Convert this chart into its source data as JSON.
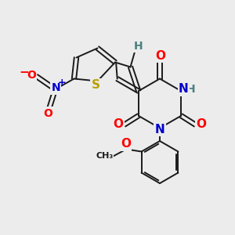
{
  "bg_color": "#ececec",
  "bond_color": "#1a1a1a",
  "bond_width": 1.4,
  "fig_size": [
    3.0,
    3.0
  ],
  "dpi": 100,
  "colors": {
    "O": "#ff0000",
    "N": "#0000cc",
    "S": "#b8a000",
    "H": "#4a8080",
    "C": "#1a1a1a",
    "NO2_N": "#0000cc",
    "NO2_O": "#ff0000"
  }
}
